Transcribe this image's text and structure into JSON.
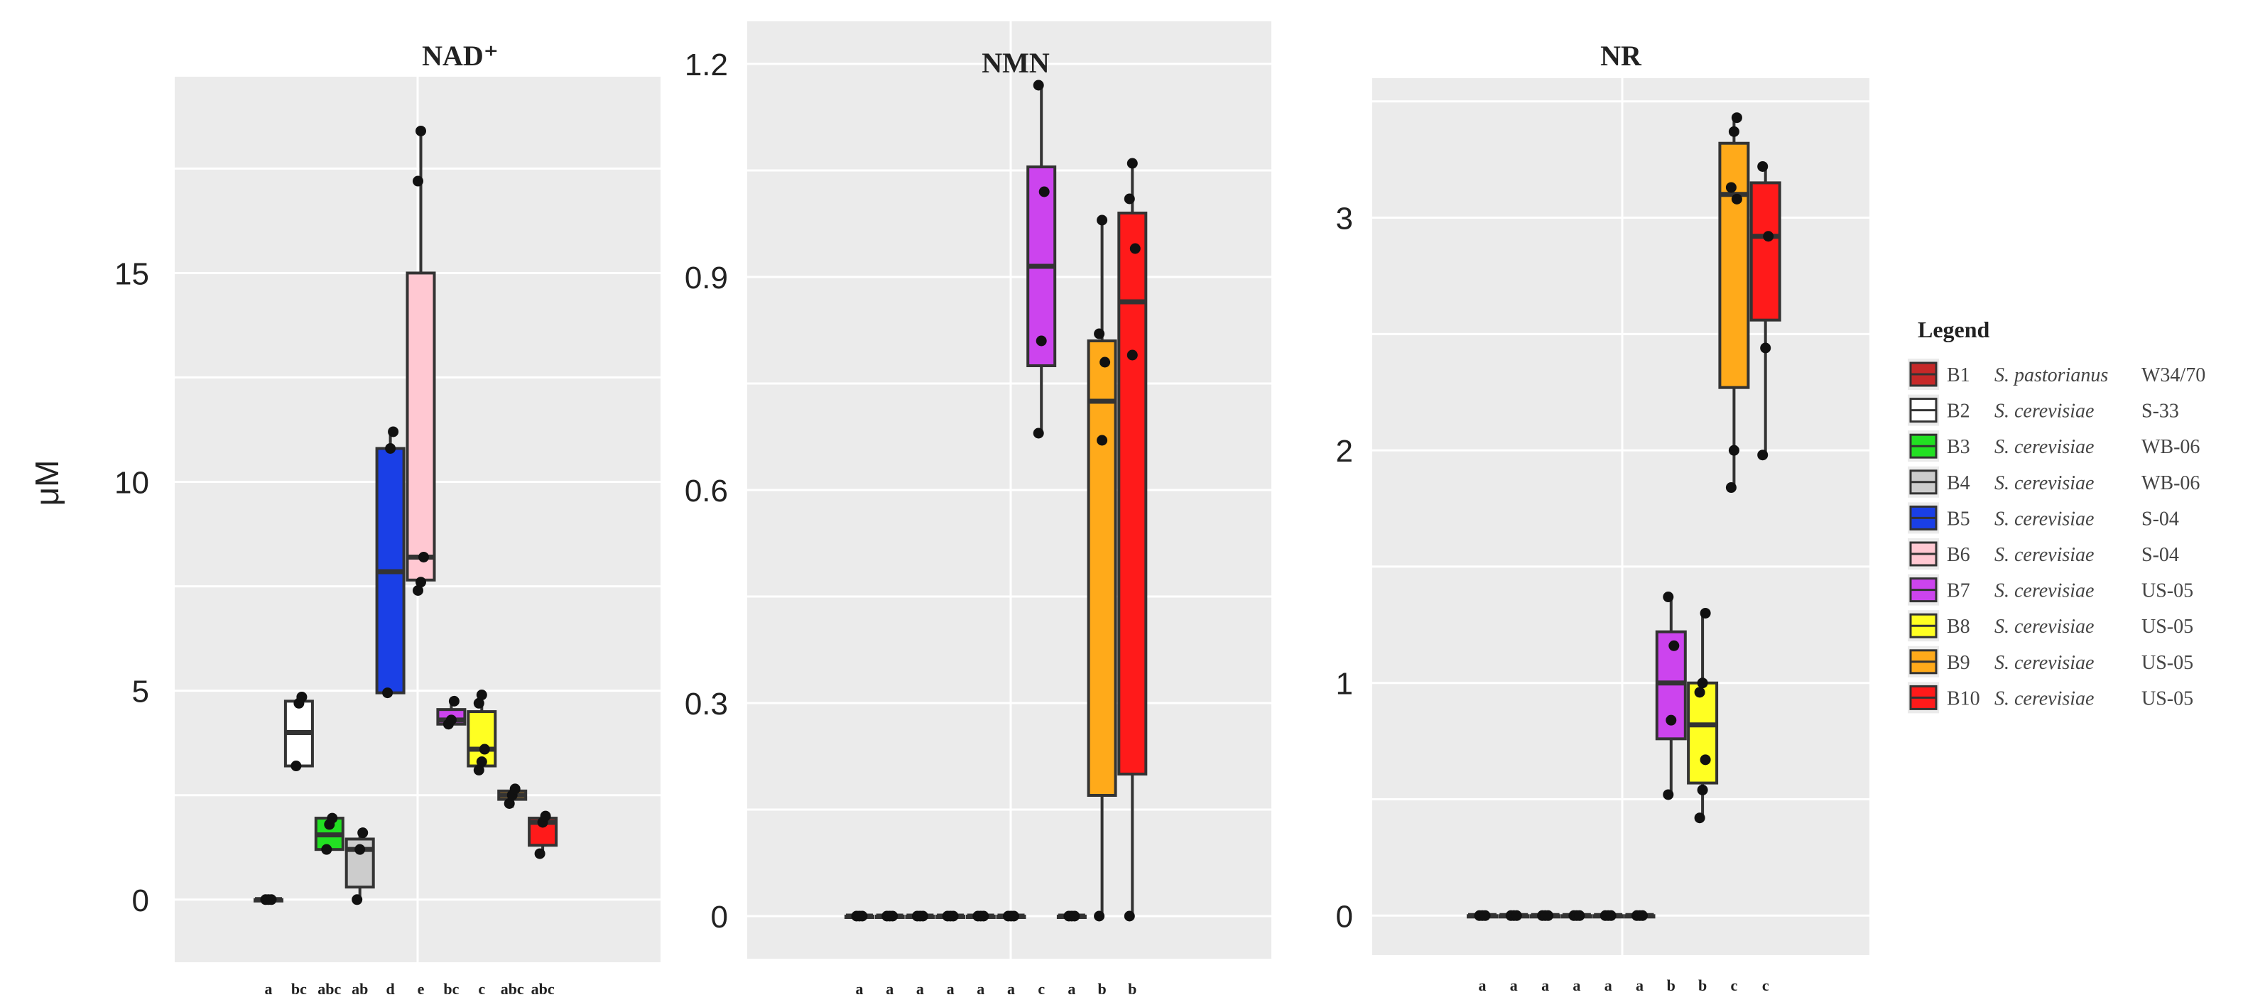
{
  "chart_data": [
    {
      "type": "box",
      "title": "NAD⁺",
      "ylabel": "μM",
      "ylim": [
        -1.5,
        19.7
      ],
      "yticks": [
        0,
        5,
        10,
        15
      ],
      "ytick_labels": [
        "0",
        "5",
        "10",
        "15"
      ],
      "categories": [
        "B1",
        "B2",
        "B3",
        "B4",
        "B5",
        "B6",
        "B7",
        "B8",
        "B9",
        "B10"
      ],
      "significance": [
        "a",
        "bc",
        "abc",
        "ab",
        "d",
        "e",
        "bc",
        "c",
        "abc",
        "abc"
      ],
      "boxes": [
        {
          "min": 0.0,
          "q1": 0.0,
          "median": 0.0,
          "q3": 0.0,
          "max": 0.0,
          "points": [
            0.0,
            0.0,
            0.0
          ]
        },
        {
          "min": 3.2,
          "q1": 3.2,
          "median": 4.0,
          "q3": 4.75,
          "max": 4.85,
          "points": [
            3.2,
            4.7,
            4.85
          ]
        },
        {
          "min": 1.2,
          "q1": 1.2,
          "median": 1.55,
          "q3": 1.95,
          "max": 2.0,
          "points": [
            1.2,
            1.8,
            1.95
          ]
        },
        {
          "min": 0.0,
          "q1": 0.3,
          "median": 1.2,
          "q3": 1.45,
          "max": 1.6,
          "points": [
            0.0,
            1.2,
            1.6
          ]
        },
        {
          "min": 4.95,
          "q1": 4.95,
          "median": 7.85,
          "q3": 10.8,
          "max": 11.2,
          "points": [
            4.95,
            10.8,
            11.2
          ]
        },
        {
          "min": 7.4,
          "q1": 7.65,
          "median": 8.2,
          "q3": 15.0,
          "max": 18.4,
          "points": [
            7.4,
            7.6,
            8.2,
            17.2,
            18.4
          ]
        },
        {
          "min": 4.15,
          "q1": 4.2,
          "median": 4.3,
          "q3": 4.55,
          "max": 4.75,
          "points": [
            4.2,
            4.3,
            4.75
          ]
        },
        {
          "min": 3.05,
          "q1": 3.2,
          "median": 3.6,
          "q3": 4.5,
          "max": 4.9,
          "points": [
            3.1,
            3.3,
            3.6,
            4.7,
            4.9
          ]
        },
        {
          "min": 2.2,
          "q1": 2.4,
          "median": 2.5,
          "q3": 2.6,
          "max": 2.7,
          "points": [
            2.3,
            2.5,
            2.65
          ]
        },
        {
          "min": 1.1,
          "q1": 1.3,
          "median": 1.85,
          "q3": 1.95,
          "max": 2.05,
          "points": [
            1.1,
            1.85,
            2.0
          ]
        }
      ]
    },
    {
      "type": "box",
      "title": "NMN",
      "ylim": [
        -0.06,
        1.26
      ],
      "yticks": [
        0,
        0.3,
        0.6,
        0.9,
        1.2
      ],
      "ytick_labels": [
        "0",
        "0.3",
        "0.6",
        "0.9",
        "1.2"
      ],
      "categories": [
        "B1",
        "B2",
        "B3",
        "B4",
        "B5",
        "B6",
        "B7",
        "B8",
        "B9",
        "B10"
      ],
      "significance": [
        "a",
        "a",
        "a",
        "a",
        "a",
        "a",
        "c",
        "a",
        "b",
        "b"
      ],
      "boxes": [
        {
          "min": 0,
          "q1": 0,
          "median": 0,
          "q3": 0,
          "max": 0,
          "points": [
            0,
            0,
            0
          ]
        },
        {
          "min": 0,
          "q1": 0,
          "median": 0,
          "q3": 0,
          "max": 0,
          "points": [
            0,
            0,
            0
          ]
        },
        {
          "min": 0,
          "q1": 0,
          "median": 0,
          "q3": 0,
          "max": 0,
          "points": [
            0,
            0,
            0
          ]
        },
        {
          "min": 0,
          "q1": 0,
          "median": 0,
          "q3": 0,
          "max": 0,
          "points": [
            0,
            0,
            0
          ]
        },
        {
          "min": 0,
          "q1": 0,
          "median": 0,
          "q3": 0,
          "max": 0,
          "points": [
            0,
            0,
            0
          ]
        },
        {
          "min": 0,
          "q1": 0,
          "median": 0,
          "q3": 0,
          "max": 0,
          "points": [
            0,
            0,
            0
          ]
        },
        {
          "min": 0.68,
          "q1": 0.775,
          "median": 0.915,
          "q3": 1.055,
          "max": 1.17,
          "points": [
            0.68,
            0.81,
            1.02,
            1.17
          ]
        },
        {
          "min": 0,
          "q1": 0,
          "median": 0,
          "q3": 0,
          "max": 0,
          "points": [
            0,
            0,
            0
          ]
        },
        {
          "min": 0,
          "q1": 0.17,
          "median": 0.725,
          "q3": 0.81,
          "max": 0.98,
          "points": [
            0,
            0.67,
            0.78,
            0.82,
            0.98
          ]
        },
        {
          "min": 0,
          "q1": 0.2,
          "median": 0.865,
          "q3": 0.99,
          "max": 1.06,
          "points": [
            0,
            0.79,
            0.94,
            1.01,
            1.06
          ]
        }
      ]
    },
    {
      "type": "box",
      "title": "NR",
      "ylim": [
        -0.17,
        3.6
      ],
      "yticks": [
        0,
        1,
        2,
        3
      ],
      "ytick_labels": [
        "0",
        "1",
        "2",
        "3"
      ],
      "categories": [
        "B1",
        "B2",
        "B3",
        "B4",
        "B5",
        "B6",
        "B7",
        "B8",
        "B9",
        "B10"
      ],
      "significance": [
        "a",
        "a",
        "a",
        "a",
        "a",
        "a",
        "b",
        "b",
        "c",
        "c"
      ],
      "boxes": [
        {
          "min": 0,
          "q1": 0,
          "median": 0,
          "q3": 0,
          "max": 0,
          "points": [
            0,
            0,
            0
          ]
        },
        {
          "min": 0,
          "q1": 0,
          "median": 0,
          "q3": 0,
          "max": 0,
          "points": [
            0,
            0,
            0
          ]
        },
        {
          "min": 0,
          "q1": 0,
          "median": 0,
          "q3": 0,
          "max": 0,
          "points": [
            0,
            0,
            0
          ]
        },
        {
          "min": 0,
          "q1": 0,
          "median": 0,
          "q3": 0,
          "max": 0,
          "points": [
            0,
            0,
            0
          ]
        },
        {
          "min": 0,
          "q1": 0,
          "median": 0,
          "q3": 0,
          "max": 0,
          "points": [
            0,
            0,
            0
          ]
        },
        {
          "min": 0,
          "q1": 0,
          "median": 0,
          "q3": 0,
          "max": 0,
          "points": [
            0,
            0,
            0
          ]
        },
        {
          "min": 0.52,
          "q1": 0.76,
          "median": 1.0,
          "q3": 1.22,
          "max": 1.37,
          "points": [
            0.52,
            0.84,
            1.16,
            1.37
          ]
        },
        {
          "min": 0.42,
          "q1": 0.57,
          "median": 0.82,
          "q3": 1.0,
          "max": 1.3,
          "points": [
            0.42,
            0.54,
            0.67,
            0.96,
            1.0,
            1.3
          ]
        },
        {
          "min": 1.84,
          "q1": 2.27,
          "median": 3.1,
          "q3": 3.32,
          "max": 3.43,
          "points": [
            1.84,
            2.0,
            3.08,
            3.13,
            3.37,
            3.43
          ]
        },
        {
          "min": 1.98,
          "q1": 2.56,
          "median": 2.92,
          "q3": 3.15,
          "max": 3.22,
          "points": [
            1.98,
            2.44,
            2.92,
            3.22
          ]
        }
      ]
    }
  ],
  "legend": {
    "title": "Legend",
    "items": [
      {
        "code": "B1",
        "species": "S. pastorianus",
        "strain": "W34/70",
        "color": "#c62828"
      },
      {
        "code": "B2",
        "species": "S. cerevisiae",
        "strain": "S-33",
        "color": "#ffffff"
      },
      {
        "code": "B3",
        "species": "S. cerevisiae",
        "strain": "WB-06",
        "color": "#22e022"
      },
      {
        "code": "B4",
        "species": "S. cerevisiae",
        "strain": "WB-06",
        "color": "#cccccc"
      },
      {
        "code": "B5",
        "species": "S. cerevisiae",
        "strain": "S-04",
        "color": "#1a3fe6"
      },
      {
        "code": "B6",
        "species": "S. cerevisiae",
        "strain": "S-04",
        "color": "#ffc8d2"
      },
      {
        "code": "B7",
        "species": "S. cerevisiae",
        "strain": "US-05",
        "color": "#cc44ee"
      },
      {
        "code": "B8",
        "species": "S. cerevisiae",
        "strain": "US-05",
        "color": "#ffff22"
      },
      {
        "code": "B9",
        "species": "S. cerevisiae",
        "strain": "US-05",
        "color": "#ffaa1a"
      },
      {
        "code": "B10",
        "species": "S. cerevisiae",
        "strain": "US-05",
        "color": "#ff1a1a"
      }
    ]
  }
}
